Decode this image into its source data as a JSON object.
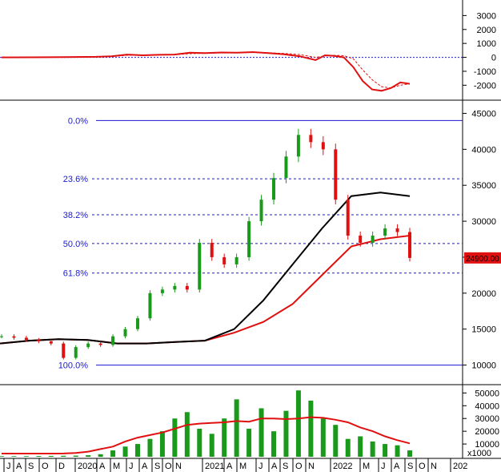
{
  "colors": {
    "macd": "#e01010",
    "macd_signal": "#e01010",
    "ma_long": "#000000",
    "ma_mid": "#e01010",
    "fib": "#1a1ad6",
    "up_candle": "#1a9a1a",
    "down_candle": "#e01010",
    "volume": "#1a9a1a",
    "volume_ma": "#e01010",
    "price_tag_bg": "#e01010",
    "grid": "#000000"
  },
  "chart_data": [
    {
      "type": "line",
      "panel": "macd",
      "ylim": [
        -2900,
        4000
      ],
      "yticks": [
        3000,
        2000,
        1000,
        0,
        -1000,
        -2000
      ],
      "zero_line": true,
      "x": [
        0,
        10,
        20,
        30,
        35,
        40,
        45,
        50,
        55,
        60,
        65,
        70,
        75,
        80,
        85,
        90,
        95,
        100,
        103,
        106,
        109,
        112,
        115,
        118,
        121,
        124,
        127,
        130
      ],
      "series": [
        {
          "values": [
            0,
            5,
            20,
            40,
            80,
            200,
            150,
            180,
            200,
            330,
            300,
            350,
            330,
            380,
            300,
            220,
            80,
            -200,
            150,
            100,
            0,
            -700,
            -1700,
            -2300,
            -2400,
            -2200,
            -1800,
            -1900
          ]
        },
        {
          "dashed": true,
          "values": [
            0,
            5,
            15,
            30,
            60,
            150,
            170,
            180,
            190,
            260,
            290,
            320,
            330,
            350,
            330,
            280,
            200,
            0,
            100,
            150,
            120,
            -100,
            -900,
            -1600,
            -2100,
            -2200,
            -2000,
            -1900
          ]
        }
      ]
    },
    {
      "type": "candlestick",
      "panel": "price",
      "ylim": [
        7500,
        46500
      ],
      "yticks": [
        45000,
        40000,
        35000,
        30000,
        25000,
        20000,
        15000,
        10000
      ],
      "last_price_label": "24900.00",
      "fibonacci": [
        {
          "label": "0.0%",
          "value": 44000
        },
        {
          "label": "23.6%",
          "value": 35900
        },
        {
          "label": "38.2%",
          "value": 30900
        },
        {
          "label": "50.0%",
          "value": 26900
        },
        {
          "label": "61.8%",
          "value": 22800
        },
        {
          "label": "100.0%",
          "value": 10000
        }
      ],
      "ma_long_values": [
        13000,
        13400,
        13600,
        13500,
        13000,
        13000,
        13200,
        13400,
        15000,
        19000,
        24000,
        29000,
        33500,
        34000,
        33500
      ],
      "ma_mid_values": [
        13000,
        13400,
        13600,
        13500,
        13000,
        13000,
        13200,
        13400,
        14500,
        16000,
        18500,
        22500,
        26500,
        27500,
        28000
      ],
      "close_values": [
        14000,
        13800,
        13500,
        13300,
        13000,
        11000,
        12500,
        13000,
        12800,
        14000,
        15000,
        16500,
        20000,
        20500,
        21000,
        20500,
        27000,
        25000,
        24000,
        25000,
        30000,
        33000,
        36000,
        39000,
        42000,
        41000,
        40000,
        33000,
        28000,
        27000,
        28000,
        29000,
        28500,
        24900
      ]
    },
    {
      "type": "bar",
      "panel": "volume",
      "ylim": [
        0,
        54000
      ],
      "yticks": [
        50000,
        40000,
        30000,
        20000,
        10000
      ],
      "unit_label": "x1000",
      "values": [
        500,
        500,
        500,
        600,
        700,
        800,
        900,
        1200,
        2000,
        5000,
        8000,
        10000,
        14000,
        20000,
        30000,
        35000,
        22000,
        18000,
        30000,
        45000,
        22000,
        38000,
        20000,
        36000,
        52000,
        44000,
        30000,
        25000,
        14000,
        16000,
        12000,
        10000,
        9000,
        5000
      ],
      "ma_values": [
        2500,
        2500,
        2500,
        2500,
        2500,
        2600,
        3000,
        4000,
        6000,
        8000,
        12000,
        15000,
        17000,
        19000,
        22000,
        25000,
        26000,
        26500,
        27000,
        28000,
        27500,
        30000,
        30000,
        29500,
        30000,
        31000,
        30500,
        29000,
        27000,
        23000,
        20000,
        16000,
        13000,
        10500
      ]
    }
  ],
  "x_axis": {
    "labels": [
      "J",
      "A",
      "S",
      "O",
      "D",
      "2020",
      "A",
      "M",
      "J",
      "A",
      "S",
      "O",
      "N",
      "2021",
      "A",
      "M",
      "J",
      "A",
      "S",
      "O",
      "N",
      "2022",
      "M",
      "J",
      "A",
      "S",
      "O",
      "N",
      "202"
    ]
  }
}
